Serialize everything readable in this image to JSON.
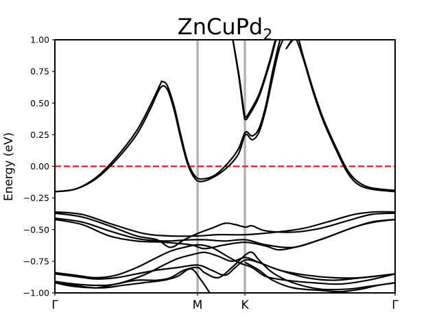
{
  "chart_data": {
    "type": "line",
    "title_main": "ZnCuPd",
    "title_sub": "2",
    "ylabel": "Energy (eV)",
    "xlabel": "",
    "ylim": [
      -1.0,
      1.0
    ],
    "xlim": [
      0,
      1
    ],
    "yticks": [
      1.0,
      0.75,
      0.5,
      0.25,
      0.0,
      -0.25,
      -0.5,
      -0.75,
      -1.0
    ],
    "ytick_labels": [
      "1.00",
      "0.75",
      "0.50",
      "0.25",
      "0.00",
      "−0.25",
      "−0.50",
      "−0.75",
      "−1.00"
    ],
    "kpoints": [
      {
        "label": "Γ",
        "x": 0.0
      },
      {
        "label": "M",
        "x": 0.4194
      },
      {
        "label": "K",
        "x": 0.5585
      },
      {
        "label": "Γ",
        "x": 1.0
      }
    ],
    "fermi_level": 0.0,
    "grid": false,
    "colors": {
      "bands": "#000000",
      "fermi": "#e31a1c",
      "kpoint_lines": "#b3b3b3"
    },
    "series": [
      {
        "values": [
          [
            0.0,
            -0.2
          ],
          [
            0.06,
            -0.18
          ],
          [
            0.12,
            -0.1
          ],
          [
            0.18,
            0.05
          ],
          [
            0.24,
            0.25
          ],
          [
            0.28,
            0.45
          ],
          [
            0.31,
            0.62
          ],
          [
            0.33,
            0.61
          ],
          [
            0.35,
            0.45
          ],
          [
            0.37,
            0.22
          ],
          [
            0.39,
            0.02
          ],
          [
            0.41,
            -0.09
          ],
          [
            0.43,
            -0.12
          ],
          [
            0.47,
            -0.08
          ],
          [
            0.51,
            0.0
          ],
          [
            0.54,
            0.1
          ],
          [
            0.56,
            0.25
          ],
          [
            0.58,
            0.21
          ],
          [
            0.6,
            0.27
          ],
          [
            0.62,
            0.45
          ],
          [
            0.64,
            0.7
          ],
          [
            0.66,
            0.93
          ],
          [
            0.68,
            1.05
          ]
        ]
      },
      {
        "values": [
          [
            0.0,
            -0.2
          ],
          [
            0.06,
            -0.18
          ],
          [
            0.12,
            -0.09
          ],
          [
            0.18,
            0.07
          ],
          [
            0.24,
            0.28
          ],
          [
            0.28,
            0.48
          ],
          [
            0.31,
            0.65
          ],
          [
            0.315,
            0.67
          ],
          [
            0.33,
            0.64
          ],
          [
            0.35,
            0.48
          ],
          [
            0.37,
            0.25
          ],
          [
            0.39,
            0.04
          ],
          [
            0.41,
            -0.07
          ],
          [
            0.43,
            -0.1
          ],
          [
            0.47,
            -0.07
          ],
          [
            0.51,
            0.03
          ],
          [
            0.54,
            0.14
          ],
          [
            0.56,
            0.27
          ],
          [
            0.58,
            0.24
          ],
          [
            0.6,
            0.3
          ],
          [
            0.62,
            0.48
          ],
          [
            0.64,
            0.75
          ],
          [
            0.66,
            0.98
          ],
          [
            0.67,
            1.05
          ]
        ]
      },
      {
        "values": [
          [
            0.52,
            1.05
          ],
          [
            0.54,
            0.72
          ],
          [
            0.555,
            0.42
          ],
          [
            0.56,
            0.37
          ],
          [
            0.57,
            0.4
          ],
          [
            0.6,
            0.55
          ],
          [
            0.63,
            0.8
          ],
          [
            0.645,
            0.95
          ],
          [
            0.655,
            1.05
          ]
        ]
      },
      {
        "values": [
          [
            0.52,
            1.05
          ],
          [
            0.54,
            0.74
          ],
          [
            0.555,
            0.45
          ],
          [
            0.56,
            0.39
          ],
          [
            0.57,
            0.42
          ],
          [
            0.6,
            0.57
          ],
          [
            0.63,
            0.82
          ],
          [
            0.645,
            0.97
          ],
          [
            0.655,
            1.05
          ]
        ]
      },
      {
        "values": [
          [
            0.68,
            0.93
          ],
          [
            0.7,
            1.0
          ],
          [
            0.71,
            1.0
          ],
          [
            0.73,
            0.85
          ],
          [
            0.76,
            0.58
          ],
          [
            0.79,
            0.35
          ],
          [
            0.83,
            0.11
          ],
          [
            0.86,
            -0.05
          ],
          [
            0.89,
            -0.14
          ],
          [
            0.93,
            -0.18
          ],
          [
            1.0,
            -0.2
          ]
        ]
      },
      {
        "values": [
          [
            0.685,
            0.95
          ],
          [
            0.7,
            1.01
          ],
          [
            0.715,
            1.01
          ],
          [
            0.73,
            0.87
          ],
          [
            0.76,
            0.6
          ],
          [
            0.79,
            0.37
          ],
          [
            0.83,
            0.13
          ],
          [
            0.86,
            -0.03
          ],
          [
            0.89,
            -0.12
          ],
          [
            0.93,
            -0.17
          ],
          [
            1.0,
            -0.19
          ]
        ]
      },
      {
        "values": [
          [
            0.0,
            -0.36
          ],
          [
            0.08,
            -0.38
          ],
          [
            0.16,
            -0.45
          ],
          [
            0.26,
            -0.53
          ],
          [
            0.34,
            -0.55
          ],
          [
            0.42,
            -0.55
          ],
          [
            0.48,
            -0.54
          ],
          [
            0.56,
            -0.54
          ],
          [
            0.65,
            -0.52
          ],
          [
            0.73,
            -0.49
          ],
          [
            0.8,
            -0.44
          ],
          [
            0.88,
            -0.38
          ],
          [
            0.94,
            -0.36
          ],
          [
            1.0,
            -0.36
          ]
        ]
      },
      {
        "values": [
          [
            0.0,
            -0.37
          ],
          [
            0.08,
            -0.4
          ],
          [
            0.16,
            -0.47
          ],
          [
            0.24,
            -0.55
          ],
          [
            0.3,
            -0.58
          ],
          [
            0.34,
            -0.64
          ],
          [
            0.38,
            -0.58
          ],
          [
            0.42,
            -0.53
          ],
          [
            0.46,
            -0.49
          ],
          [
            0.5,
            -0.45
          ],
          [
            0.53,
            -0.46
          ],
          [
            0.56,
            -0.48
          ],
          [
            0.58,
            -0.47
          ],
          [
            0.62,
            -0.51
          ],
          [
            0.7,
            -0.52
          ],
          [
            0.78,
            -0.49
          ],
          [
            0.86,
            -0.43
          ],
          [
            0.93,
            -0.38
          ],
          [
            1.0,
            -0.37
          ]
        ]
      },
      {
        "values": [
          [
            0.0,
            -0.41
          ],
          [
            0.08,
            -0.44
          ],
          [
            0.16,
            -0.51
          ],
          [
            0.24,
            -0.57
          ],
          [
            0.32,
            -0.59
          ],
          [
            0.4,
            -0.58
          ],
          [
            0.44,
            -0.58
          ],
          [
            0.5,
            -0.59
          ],
          [
            0.56,
            -0.58
          ],
          [
            0.62,
            -0.62
          ],
          [
            0.7,
            -0.64
          ],
          [
            0.78,
            -0.58
          ],
          [
            0.86,
            -0.5
          ],
          [
            0.93,
            -0.44
          ],
          [
            1.0,
            -0.42
          ]
        ]
      },
      {
        "values": [
          [
            0.0,
            -0.42
          ],
          [
            0.08,
            -0.46
          ],
          [
            0.16,
            -0.55
          ],
          [
            0.24,
            -0.59
          ],
          [
            0.32,
            -0.6
          ],
          [
            0.4,
            -0.62
          ],
          [
            0.44,
            -0.65
          ],
          [
            0.5,
            -0.62
          ],
          [
            0.56,
            -0.6
          ],
          [
            0.62,
            -0.63
          ],
          [
            0.66,
            -0.66
          ],
          [
            0.72,
            -0.63
          ],
          [
            0.8,
            -0.56
          ],
          [
            0.88,
            -0.48
          ],
          [
            0.94,
            -0.44
          ],
          [
            1.0,
            -0.42
          ]
        ]
      },
      {
        "values": [
          [
            0.0,
            -0.84
          ],
          [
            0.06,
            -0.86
          ],
          [
            0.12,
            -0.88
          ],
          [
            0.18,
            -0.86
          ],
          [
            0.24,
            -0.8
          ],
          [
            0.3,
            -0.72
          ],
          [
            0.34,
            -0.67
          ],
          [
            0.38,
            -0.64
          ],
          [
            0.42,
            -0.62
          ],
          [
            0.46,
            -0.64
          ],
          [
            0.5,
            -0.7
          ],
          [
            0.54,
            -0.76
          ],
          [
            0.58,
            -0.8
          ],
          [
            0.62,
            -0.87
          ],
          [
            0.68,
            -0.9
          ],
          [
            0.76,
            -0.92
          ],
          [
            0.84,
            -0.93
          ],
          [
            0.92,
            -0.9
          ],
          [
            1.0,
            -0.85
          ]
        ]
      },
      {
        "values": [
          [
            0.0,
            -0.85
          ],
          [
            0.06,
            -0.87
          ],
          [
            0.12,
            -0.89
          ],
          [
            0.18,
            -0.88
          ],
          [
            0.24,
            -0.85
          ],
          [
            0.3,
            -0.82
          ],
          [
            0.36,
            -0.8
          ],
          [
            0.42,
            -0.78
          ],
          [
            0.46,
            -0.82
          ],
          [
            0.5,
            -0.86
          ],
          [
            0.53,
            -0.8
          ],
          [
            0.56,
            -0.74
          ],
          [
            0.6,
            -0.76
          ],
          [
            0.66,
            -0.82
          ],
          [
            0.74,
            -0.86
          ],
          [
            0.82,
            -0.88
          ],
          [
            0.9,
            -0.88
          ],
          [
            1.0,
            -0.85
          ]
        ]
      },
      {
        "values": [
          [
            0.0,
            -0.91
          ],
          [
            0.06,
            -0.93
          ],
          [
            0.12,
            -0.94
          ],
          [
            0.18,
            -0.93
          ],
          [
            0.26,
            -0.86
          ],
          [
            0.32,
            -0.78
          ],
          [
            0.36,
            -0.73
          ],
          [
            0.4,
            -0.7
          ],
          [
            0.44,
            -0.68
          ],
          [
            0.48,
            -0.71
          ],
          [
            0.52,
            -0.75
          ],
          [
            0.56,
            -0.72
          ],
          [
            0.6,
            -0.76
          ],
          [
            0.66,
            -0.82
          ],
          [
            0.74,
            -0.88
          ],
          [
            0.82,
            -0.9
          ],
          [
            0.9,
            -0.88
          ],
          [
            1.0,
            -0.85
          ]
        ]
      },
      {
        "values": [
          [
            0.0,
            -0.92
          ],
          [
            0.06,
            -0.94
          ],
          [
            0.12,
            -0.96
          ],
          [
            0.18,
            -0.93
          ],
          [
            0.24,
            -0.9
          ],
          [
            0.3,
            -0.9
          ],
          [
            0.34,
            -0.88
          ],
          [
            0.38,
            -0.82
          ],
          [
            0.42,
            -0.8
          ],
          [
            0.44,
            -0.84
          ],
          [
            0.48,
            -0.88
          ],
          [
            0.52,
            -0.8
          ],
          [
            0.56,
            -0.7
          ],
          [
            0.58,
            -0.68
          ],
          [
            0.6,
            -0.74
          ],
          [
            0.64,
            -0.84
          ],
          [
            0.7,
            -0.92
          ],
          [
            0.78,
            -0.97
          ],
          [
            0.86,
            -0.97
          ],
          [
            0.92,
            -0.95
          ],
          [
            1.0,
            -0.92
          ]
        ]
      },
      {
        "values": [
          [
            0.0,
            -0.92
          ],
          [
            0.06,
            -0.95
          ],
          [
            0.14,
            -0.96
          ],
          [
            0.2,
            -0.94
          ],
          [
            0.26,
            -0.92
          ],
          [
            0.32,
            -0.9
          ],
          [
            0.36,
            -0.87
          ],
          [
            0.4,
            -0.81
          ],
          [
            0.43,
            -0.9
          ],
          [
            0.46,
            -1.02
          ]
        ]
      },
      {
        "values": [
          [
            0.56,
            -0.76
          ],
          [
            0.6,
            -0.82
          ],
          [
            0.64,
            -0.9
          ],
          [
            0.7,
            -0.96
          ],
          [
            0.78,
            -0.98
          ],
          [
            0.84,
            -0.99
          ],
          [
            0.9,
            -0.97
          ],
          [
            0.95,
            -0.94
          ],
          [
            1.0,
            -0.92
          ]
        ]
      }
    ]
  }
}
